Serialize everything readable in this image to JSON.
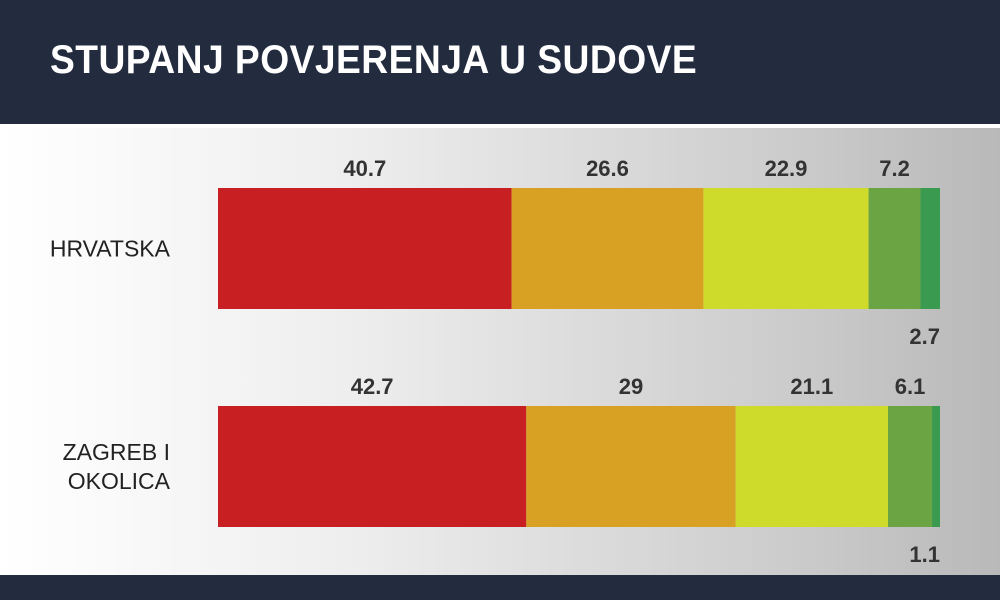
{
  "header": {
    "title": "STUPANJ POVJERENJA U SUDOVE"
  },
  "chart_data": {
    "type": "bar",
    "orientation": "horizontal",
    "stacked": true,
    "title": "STUPANJ POVJERENJA U SUDOVE",
    "categories": [
      [
        "HRVATSKA"
      ],
      [
        "ZAGREB I",
        "OKOLICA"
      ]
    ],
    "series": [
      {
        "color": "#c71f22",
        "values": [
          40.7,
          42.7
        ]
      },
      {
        "color": "#d8a124",
        "values": [
          26.6,
          29
        ]
      },
      {
        "color": "#cfdb2a",
        "values": [
          22.9,
          21.1
        ]
      },
      {
        "color": "#6aa443",
        "values": [
          7.2,
          6.1
        ]
      },
      {
        "color": "#3a9a4f",
        "values": [
          2.7,
          1.1
        ]
      }
    ],
    "label_texts": [
      [
        "40.7",
        "26.6",
        "22.9",
        "7.2",
        "2.7"
      ],
      [
        "42.7",
        "29",
        "21.1",
        "6.1",
        "1.1"
      ]
    ],
    "legend": "none",
    "grid": false
  }
}
